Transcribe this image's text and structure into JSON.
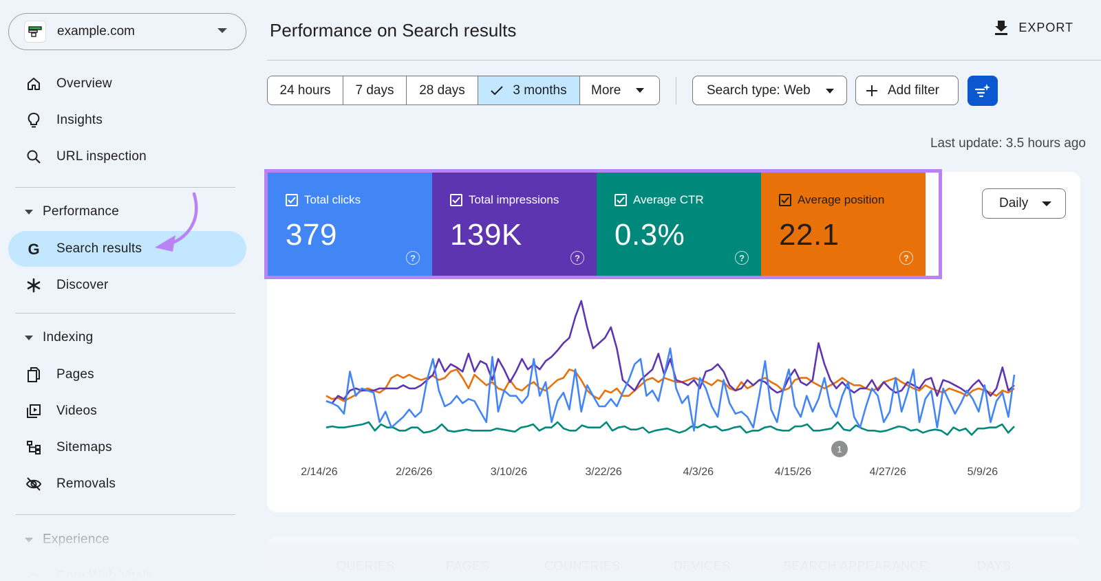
{
  "property": {
    "name": "example.com"
  },
  "nav": {
    "overview": "Overview",
    "insights": "Insights",
    "url_inspection": "URL inspection",
    "performance_section": "Performance",
    "search_results": "Search results",
    "discover": "Discover",
    "indexing_section": "Indexing",
    "pages": "Pages",
    "videos": "Videos",
    "sitemaps": "Sitemaps",
    "removals": "Removals",
    "experience_section": "Experience",
    "core_web_vitals": "Core Web Vitals"
  },
  "header": {
    "title": "Performance on Search results",
    "export": "EXPORT"
  },
  "date_range": {
    "options": [
      "24 hours",
      "7 days",
      "28 days",
      "3 months"
    ],
    "selected": "3 months",
    "more": "More"
  },
  "filters": {
    "search_type": "Search type: Web",
    "add_filter": "Add filter"
  },
  "last_update": "Last update: 3.5 hours ago",
  "metrics": [
    {
      "label": "Total clicks",
      "value": "379",
      "color": "#4285f4",
      "text_color": "#ffffff"
    },
    {
      "label": "Total impressions",
      "value": "139K",
      "color": "#5e35b1",
      "text_color": "#ffffff"
    },
    {
      "label": "Average CTR",
      "value": "0.3%",
      "color": "#00897b",
      "text_color": "#ffffff"
    },
    {
      "label": "Average position",
      "value": "22.1",
      "color": "#e8710a",
      "text_color": "#1f1f1f"
    }
  ],
  "granularity": "Daily",
  "annotation_badge": "1",
  "tabs": [
    "QUERIES",
    "PAGES",
    "COUNTRIES",
    "DEVICES",
    "SEARCH APPEARANCE",
    "DAYS"
  ],
  "chart_data": {
    "type": "line",
    "x_tick_labels": [
      "2/14/26",
      "2/26/26",
      "3/10/26",
      "3/22/26",
      "4/3/26",
      "4/15/26",
      "4/27/26",
      "5/9/26"
    ],
    "series": [
      {
        "name": "Total clicks",
        "color": "#4285f4",
        "values": [
          50,
          48,
          45,
          38,
          78,
          55,
          62,
          60,
          58,
          30,
          40,
          25,
          30,
          35,
          42,
          35,
          40,
          70,
          90,
          60,
          45,
          48,
          55,
          48,
          52,
          50,
          40,
          30,
          92,
          40,
          60,
          55,
          55,
          48,
          55,
          90,
          55,
          68,
          30,
          50,
          58,
          42,
          80,
          40,
          65,
          55,
          45,
          45,
          52,
          45,
          58,
          70,
          85,
          90,
          55,
          60,
          50,
          75,
          100,
          62,
          48,
          55,
          22,
          72,
          62,
          45,
          35,
          70,
          48,
          38,
          40,
          35,
          25,
          55,
          88,
          42,
          30,
          60,
          80,
          45,
          35,
          55,
          40,
          52,
          72,
          45,
          35,
          55,
          68,
          35,
          25,
          45,
          62,
          55,
          30,
          40,
          72,
          40,
          58,
          80,
          30,
          52,
          60,
          25,
          62,
          50,
          38,
          48,
          60,
          52,
          40,
          65,
          30,
          50,
          58,
          35,
          75
        ]
      },
      {
        "name": "Total impressions",
        "color": "#5e35b1",
        "values": [
          50,
          48,
          55,
          52,
          60,
          62,
          60,
          60,
          60,
          62,
          62,
          62,
          62,
          65,
          62,
          62,
          65,
          70,
          75,
          90,
          78,
          85,
          82,
          78,
          95,
          78,
          88,
          85,
          70,
          90,
          80,
          68,
          78,
          90,
          80,
          85,
          80,
          88,
          92,
          98,
          105,
          110,
          130,
          145,
          120,
          100,
          105,
          110,
          120,
          100,
          70,
          65,
          60,
          70,
          75,
          80,
          95,
          75,
          90,
          70,
          68,
          65,
          70,
          62,
          78,
          80,
          85,
          78,
          65,
          60,
          62,
          70,
          65,
          70,
          68,
          62,
          58,
          60,
          72,
          80,
          68,
          65,
          70,
          105,
          85,
          70,
          62,
          68,
          62,
          58,
          62,
          62,
          70,
          60,
          68,
          62,
          58,
          60,
          68,
          65,
          62,
          70,
          72,
          55,
          70,
          68,
          65,
          62,
          58,
          65,
          70,
          62,
          55,
          62,
          82,
          60,
          65
        ]
      },
      {
        "name": "Average CTR",
        "color": "#00897b",
        "values": [
          25,
          26,
          25,
          25,
          26,
          27,
          28,
          30,
          22,
          28,
          25,
          25,
          22,
          22,
          25,
          25,
          20,
          21,
          23,
          28,
          22,
          21,
          22,
          23,
          22,
          22,
          22,
          22,
          24,
          23,
          22,
          21,
          25,
          26,
          28,
          22,
          25,
          25,
          30,
          24,
          22,
          22,
          27,
          25,
          25,
          25,
          30,
          22,
          25,
          26,
          23,
          23,
          25,
          20,
          22,
          23,
          24,
          22,
          20,
          22,
          26,
          25,
          28,
          25,
          26,
          22,
          23,
          25,
          26,
          20,
          22,
          22,
          25,
          26,
          23,
          22,
          22,
          26,
          26,
          28,
          22,
          22,
          23,
          24,
          30,
          23,
          22,
          27,
          24,
          22,
          22,
          21,
          22,
          24,
          26,
          25,
          22,
          23,
          20,
          22,
          23,
          22,
          18,
          25,
          22,
          24,
          18,
          24,
          24,
          25,
          25,
          28,
          20,
          26
        ]
      },
      {
        "name": "Average position",
        "color": "#e8710a",
        "values": [
          55,
          52,
          53,
          50,
          53,
          56,
          60,
          62,
          60,
          58,
          62,
          72,
          75,
          72,
          75,
          72,
          70,
          72,
          74,
          70,
          72,
          78,
          80,
          72,
          62,
          75,
          70,
          65,
          68,
          62,
          60,
          70,
          62,
          60,
          65,
          68,
          62,
          60,
          65,
          70,
          72,
          80,
          78,
          70,
          60,
          55,
          52,
          60,
          58,
          62,
          55,
          55,
          60,
          65,
          70,
          72,
          68,
          72,
          70,
          68,
          68,
          70,
          72,
          70,
          68,
          65,
          70,
          68,
          62,
          60,
          68,
          62,
          65,
          70,
          72,
          68,
          65,
          60,
          62,
          70,
          72,
          72,
          68,
          65,
          62,
          65,
          68,
          72,
          68,
          65,
          65,
          62,
          60,
          62,
          68,
          70,
          72,
          68,
          65,
          62,
          60,
          65,
          62,
          60,
          58,
          62,
          60,
          58,
          55,
          60,
          62,
          60,
          58,
          55,
          60,
          58,
          62
        ]
      }
    ]
  }
}
